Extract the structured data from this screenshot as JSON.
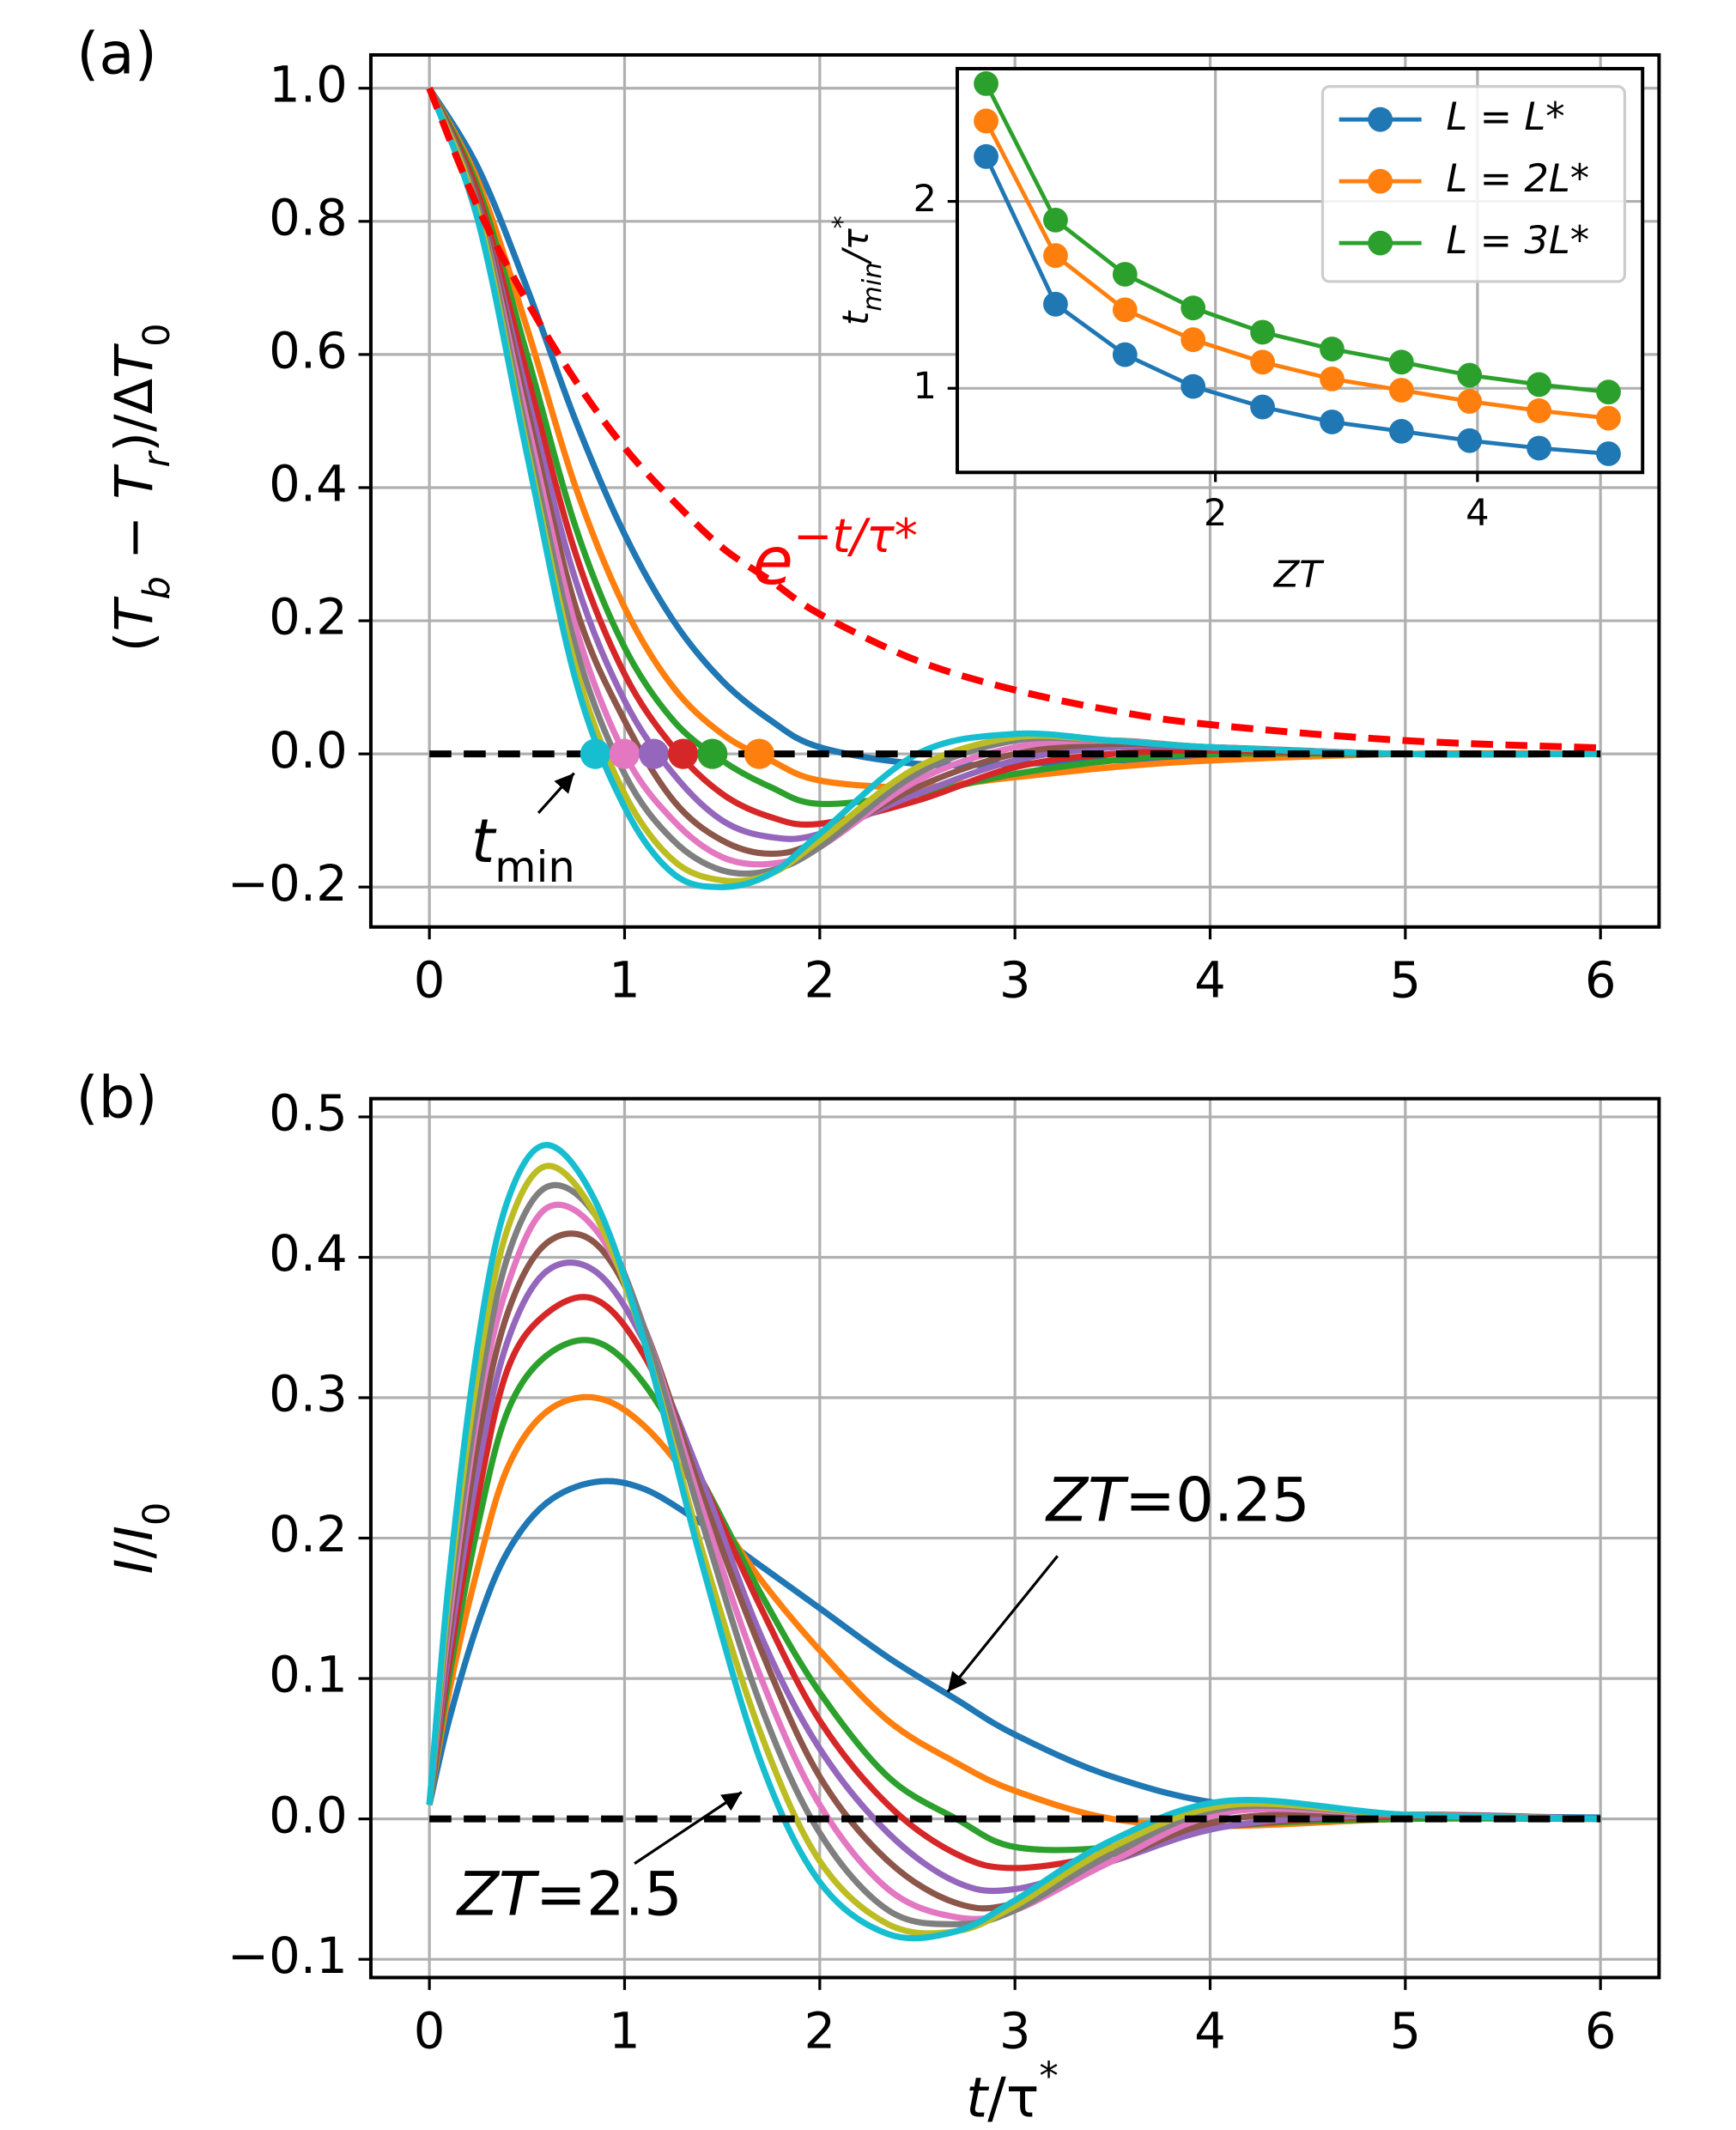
{
  "chart_data": [
    {
      "type": "line",
      "panel_label": "(a)",
      "ylabel": [
        "(",
        "T",
        "b",
        " − ",
        "T",
        "r",
        ")/Δ",
        "T",
        "0"
      ],
      "annotations": [
        {
          "text": [
            "e",
            "−t/τ*"
          ]
        },
        {
          "text": [
            "t",
            "min"
          ]
        }
      ],
      "xlim": [
        -0.3,
        6.3
      ],
      "ylim": [
        -0.26,
        1.05
      ],
      "xticks": [
        0,
        1,
        2,
        3,
        4,
        5,
        6
      ],
      "yticks": [
        {
          "value": -0.2,
          "label": "−0.2"
        },
        {
          "value": 0,
          "label": "0.0"
        },
        0.2,
        0.4,
        0.6,
        0.8,
        {
          "value": 1,
          "label": "1.0"
        }
      ],
      "grid": true,
      "x": [
        0,
        0.25,
        0.5,
        0.75,
        1,
        1.25,
        1.5,
        1.75,
        2,
        2.5,
        3,
        3.5,
        4,
        5,
        6
      ],
      "series": [
        {
          "color": "#1f77b4",
          "values": [
            1,
            0.88,
            0.7,
            0.5,
            0.33,
            0.2,
            0.11,
            0.05,
            0.01,
            -0.015,
            -0.015,
            -0.01,
            -0.005,
            0,
            0
          ]
        },
        {
          "color": "#ff7f0e",
          "values": [
            1,
            0.86,
            0.64,
            0.4,
            0.22,
            0.1,
            0.03,
            -0.01,
            -0.04,
            -0.05,
            -0.035,
            -0.02,
            -0.01,
            0,
            0
          ]
        },
        {
          "color": "#2ca02c",
          "values": [
            1,
            0.85,
            0.6,
            0.34,
            0.16,
            0.05,
            -0.01,
            -0.05,
            -0.075,
            -0.06,
            -0.03,
            -0.01,
            0,
            0,
            0
          ]
        },
        {
          "color": "#d62728",
          "values": [
            1,
            0.84,
            0.57,
            0.3,
            0.12,
            0.01,
            -0.06,
            -0.095,
            -0.105,
            -0.07,
            -0.02,
            0,
            0.005,
            0,
            0
          ]
        },
        {
          "color": "#9467bd",
          "values": [
            1,
            0.83,
            0.54,
            0.26,
            0.08,
            -0.03,
            -0.1,
            -0.125,
            -0.12,
            -0.06,
            -0.01,
            0.01,
            0.01,
            0,
            0
          ]
        },
        {
          "color": "#8c564b",
          "values": [
            1,
            0.83,
            0.52,
            0.22,
            0.05,
            -0.07,
            -0.13,
            -0.15,
            -0.13,
            -0.05,
            0,
            0.015,
            0.01,
            0,
            0
          ]
        },
        {
          "color": "#e377c2",
          "values": [
            1,
            0.82,
            0.5,
            0.19,
            0,
            -0.1,
            -0.155,
            -0.165,
            -0.14,
            -0.04,
            0.01,
            0.02,
            0.01,
            0,
            0
          ]
        },
        {
          "color": "#7f7f7f",
          "values": [
            1,
            0.82,
            0.48,
            0.16,
            -0.03,
            -0.13,
            -0.175,
            -0.175,
            -0.14,
            -0.03,
            0.02,
            0.02,
            0.01,
            0,
            0
          ]
        },
        {
          "color": "#bcbd22",
          "values": [
            1,
            0.81,
            0.46,
            0.13,
            -0.06,
            -0.16,
            -0.19,
            -0.18,
            -0.13,
            -0.02,
            0.025,
            0.02,
            0.01,
            0,
            0
          ]
        },
        {
          "color": "#17becf",
          "values": [
            1,
            0.8,
            0.45,
            0.11,
            -0.08,
            -0.18,
            -0.2,
            -0.18,
            -0.12,
            0,
            0.03,
            0.02,
            0.01,
            0,
            0
          ]
        },
        {
          "color": "#ff0000",
          "dash": true,
          "values": [
            1,
            0.82,
            0.68,
            0.56,
            0.46,
            0.38,
            0.31,
            0.26,
            0.21,
            0.14,
            0.096,
            0.065,
            0.044,
            0.02,
            0.009
          ]
        }
      ],
      "hline": 0,
      "markers": {
        "x": [
          0.85,
          1.0,
          1.15,
          1.3,
          1.45,
          1.69
        ],
        "y": [
          0,
          0,
          0,
          0,
          0,
          0
        ],
        "colors": [
          "#17becf",
          "#e377c2",
          "#9467bd",
          "#d62728",
          "#2ca02c",
          "#ff7f0e"
        ]
      }
    },
    {
      "type": "line",
      "xlabel": "ZT",
      "ylabel": [
        "t",
        "min",
        "/τ",
        "*"
      ],
      "xlim": [
        0.03,
        5.26
      ],
      "ylim": [
        0.55,
        2.71
      ],
      "xticks": [
        2,
        4
      ],
      "yticks": [
        1,
        2
      ],
      "grid": true,
      "legend": "upper right",
      "point_markers": true,
      "x": [
        0.25,
        0.78,
        1.31,
        1.83,
        2.36,
        2.89,
        3.42,
        3.94,
        4.47,
        5.0
      ],
      "series": [
        {
          "name": "L = L*",
          "color": "#1f77b4",
          "values": [
            2.24,
            1.45,
            1.18,
            1.01,
            0.9,
            0.82,
            0.77,
            0.72,
            0.68,
            0.65
          ]
        },
        {
          "name": "L = 2L*",
          "color": "#ff7f0e",
          "values": [
            2.43,
            1.71,
            1.42,
            1.26,
            1.14,
            1.05,
            0.99,
            0.93,
            0.88,
            0.84
          ]
        },
        {
          "name": "L = 3L*",
          "color": "#2ca02c",
          "values": [
            2.63,
            1.9,
            1.61,
            1.43,
            1.3,
            1.21,
            1.14,
            1.07,
            1.02,
            0.98
          ]
        }
      ]
    },
    {
      "type": "line",
      "panel_label": "(b)",
      "ylabel": [
        "I",
        "/",
        "I",
        "0"
      ],
      "xlabel": [
        "t",
        "/τ",
        "*"
      ],
      "annotations": [
        {
          "text": [
            "ZT",
            "=0.25"
          ]
        },
        {
          "text": [
            "ZT",
            "=2.5"
          ]
        }
      ],
      "xlim": [
        -0.3,
        6.3
      ],
      "ylim": [
        -0.113,
        0.513
      ],
      "xticks": [
        0,
        1,
        2,
        3,
        4,
        5,
        6
      ],
      "yticks": [
        {
          "value": -0.1,
          "label": "−0.1"
        },
        {
          "value": 0,
          "label": "0.0"
        },
        0.1,
        0.2,
        0.3,
        0.4,
        0.5
      ],
      "grid": true,
      "x": [
        0,
        0.1,
        0.25,
        0.4,
        0.6,
        0.85,
        1.1,
        1.4,
        1.7,
        2,
        2.35,
        2.7,
        3,
        3.5,
        4.1,
        5,
        6
      ],
      "series": [
        {
          "color": "#1f77b4",
          "values": [
            0.01,
            0.07,
            0.14,
            0.19,
            0.225,
            0.24,
            0.235,
            0.21,
            0.18,
            0.15,
            0.115,
            0.085,
            0.06,
            0.03,
            0.01,
            0.003,
            0.001
          ]
        },
        {
          "color": "#ff7f0e",
          "values": [
            0.01,
            0.09,
            0.18,
            0.25,
            0.29,
            0.3,
            0.28,
            0.23,
            0.17,
            0.12,
            0.07,
            0.04,
            0.02,
            0,
            -0.005,
            0,
            0
          ]
        },
        {
          "color": "#2ca02c",
          "values": [
            0.01,
            0.1,
            0.21,
            0.29,
            0.33,
            0.34,
            0.31,
            0.24,
            0.16,
            0.09,
            0.03,
            0,
            -0.02,
            -0.02,
            -0.005,
            0,
            0
          ]
        },
        {
          "color": "#d62728",
          "values": [
            0.01,
            0.11,
            0.23,
            0.32,
            0.36,
            0.37,
            0.33,
            0.24,
            0.15,
            0.07,
            0.01,
            -0.025,
            -0.035,
            -0.025,
            -0.005,
            0.002,
            0
          ]
        },
        {
          "color": "#9467bd",
          "values": [
            0.01,
            0.12,
            0.25,
            0.34,
            0.39,
            0.39,
            0.34,
            0.24,
            0.13,
            0.05,
            -0.01,
            -0.045,
            -0.05,
            -0.03,
            -0.005,
            0.003,
            0
          ]
        },
        {
          "color": "#8c564b",
          "values": [
            0.01,
            0.13,
            0.27,
            0.36,
            0.41,
            0.41,
            0.35,
            0.23,
            0.12,
            0.03,
            -0.03,
            -0.06,
            -0.06,
            -0.03,
            0,
            0.003,
            0
          ]
        },
        {
          "color": "#e377c2",
          "values": [
            0.01,
            0.14,
            0.29,
            0.38,
            0.435,
            0.42,
            0.35,
            0.22,
            0.1,
            0.01,
            -0.05,
            -0.07,
            -0.065,
            -0.03,
            0.005,
            0.003,
            0
          ]
        },
        {
          "color": "#7f7f7f",
          "values": [
            0.01,
            0.15,
            0.3,
            0.4,
            0.45,
            0.43,
            0.35,
            0.21,
            0.08,
            -0.01,
            -0.065,
            -0.075,
            -0.065,
            -0.025,
            0.008,
            0.003,
            0
          ]
        },
        {
          "color": "#bcbd22",
          "values": [
            0.01,
            0.16,
            0.32,
            0.42,
            0.465,
            0.43,
            0.34,
            0.19,
            0.06,
            -0.03,
            -0.075,
            -0.08,
            -0.062,
            -0.02,
            0.01,
            0.003,
            0
          ]
        },
        {
          "color": "#17becf",
          "values": [
            0.01,
            0.17,
            0.34,
            0.44,
            0.48,
            0.44,
            0.34,
            0.18,
            0.04,
            -0.045,
            -0.082,
            -0.08,
            -0.058,
            -0.015,
            0.013,
            0.003,
            0
          ]
        }
      ],
      "hline": 0
    }
  ]
}
